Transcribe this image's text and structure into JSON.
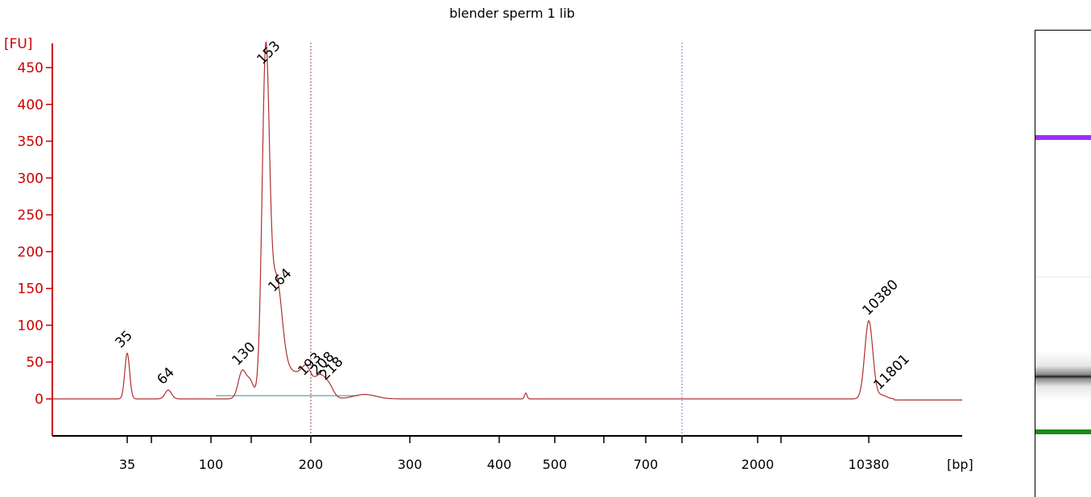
{
  "chart_data": {
    "type": "line",
    "title": "blender sperm 1 lib",
    "ylabel": "[FU]",
    "xlabel": "[bp]",
    "ylim": [
      -50,
      460
    ],
    "yticks": [
      0,
      50,
      100,
      150,
      200,
      250,
      300,
      350,
      400,
      450
    ],
    "xticks": [
      "35",
      "",
      "100",
      "",
      "200",
      "300",
      "400",
      "500",
      "",
      "700",
      "",
      "2000",
      "",
      "10380"
    ],
    "peaks": [
      {
        "label": "35",
        "color": "#228b22",
        "height": 62
      },
      {
        "label": "64",
        "color": "#000000",
        "height": 12
      },
      {
        "label": "130",
        "color": "#000000",
        "height": 38
      },
      {
        "label": "153",
        "color": "#000000",
        "height": 447
      },
      {
        "label": "164",
        "color": "#000000",
        "height": 138
      },
      {
        "label": "193",
        "color": "#000000",
        "height": 24
      },
      {
        "label": "208",
        "color": "#000000",
        "height": 25
      },
      {
        "label": "218",
        "color": "#000000",
        "height": 18
      },
      {
        "label": "10380",
        "color": "#9b30ff",
        "height": 106
      },
      {
        "label": "11801",
        "color": "#000000",
        "height": 5
      }
    ],
    "series_color": "#b03030",
    "grid": false,
    "legend": "none"
  },
  "gel": {
    "upper_marker_color": "#9b30ff",
    "lower_marker_color": "#1a8a1a",
    "band_color": "#222222"
  }
}
